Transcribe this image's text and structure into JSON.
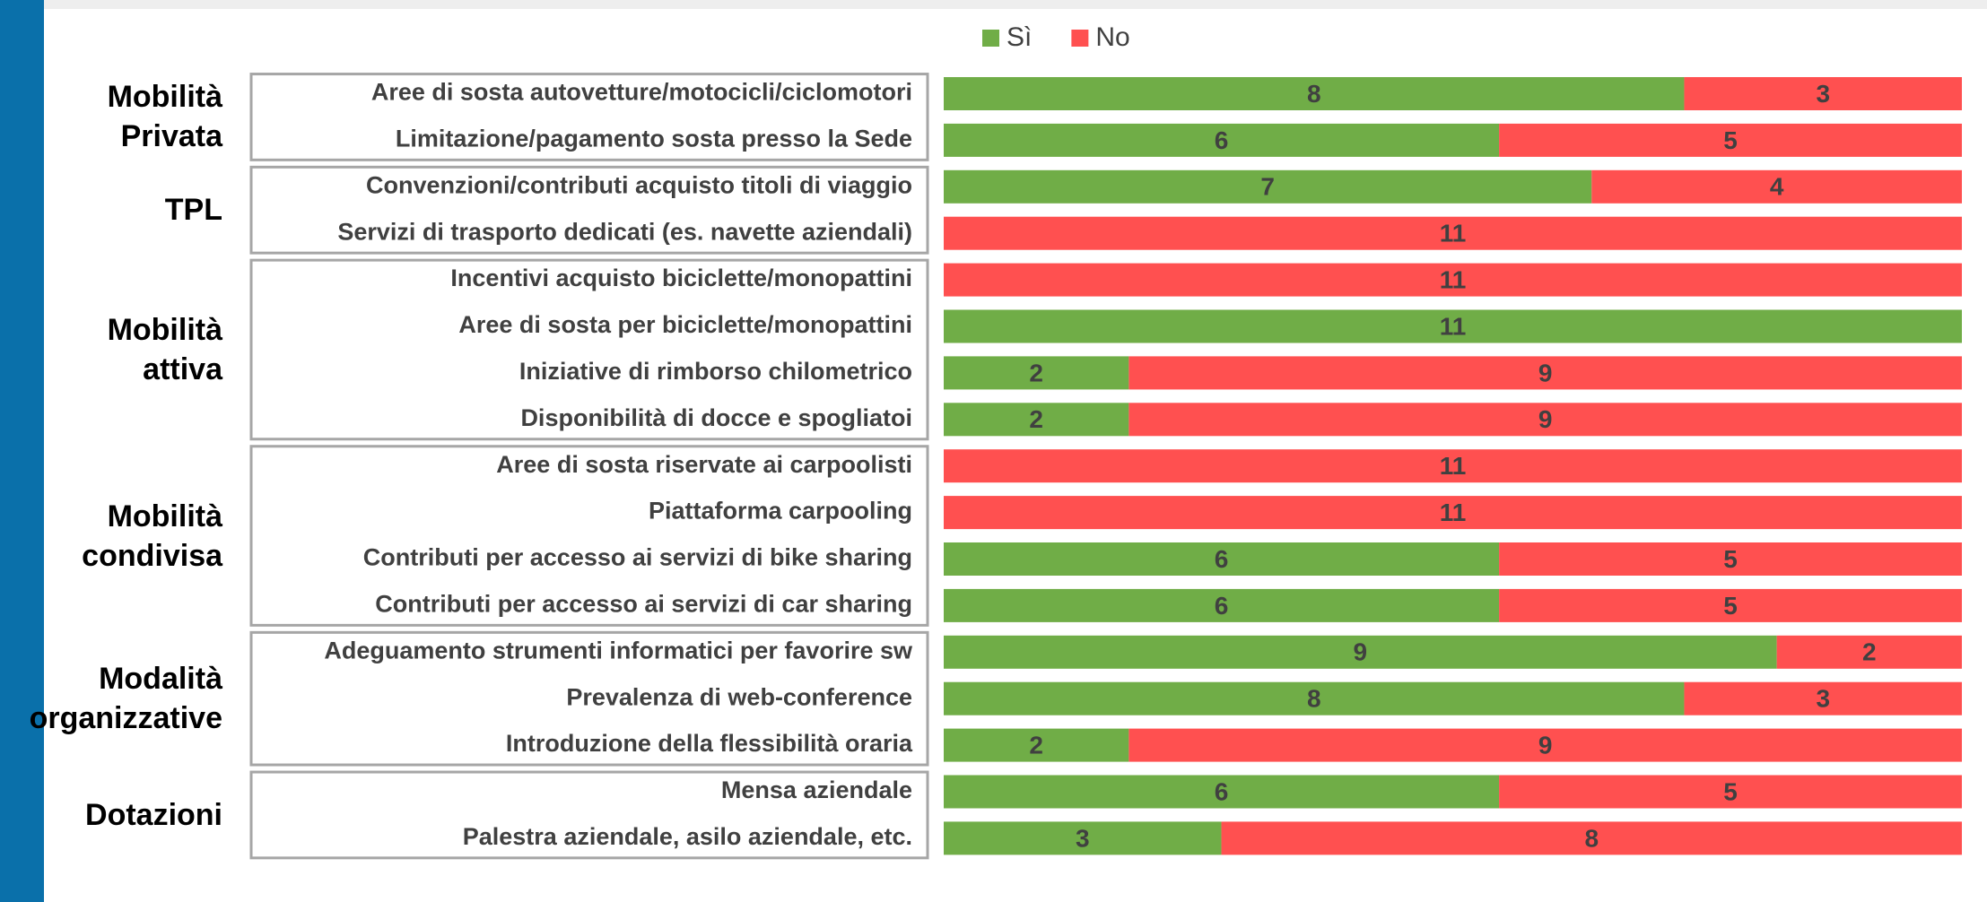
{
  "chart_data": {
    "type": "stacked-bar-horizontal",
    "groups": [
      {
        "name": "Mobilità Privata",
        "categories": [
          "Aree di sosta autovetture/motocicli/ciclomotori",
          "Limitazione/pagamento sosta presso la Sede"
        ]
      },
      {
        "name": "TPL",
        "categories": [
          "Convenzioni/contributi acquisto titoli di viaggio",
          "Servizi di trasporto dedicati (es. navette aziendali)"
        ]
      },
      {
        "name": "Mobilità attiva",
        "categories": [
          "Incentivi acquisto biciclette/monopattini",
          "Aree di sosta per biciclette/monopattini",
          "Iniziative di rimborso chilometrico",
          "Disponibilità di docce e spogliatoi"
        ]
      },
      {
        "name": "Mobilità condivisa",
        "categories": [
          "Aree di sosta riservate ai carpoolisti",
          "Piattaforma carpooling",
          "Contributi per accesso ai servizi di bike sharing",
          "Contributi per accesso ai servizi di car sharing"
        ]
      },
      {
        "name": "Modalità organizzative",
        "categories": [
          "Adeguamento strumenti informatici per favorire sw",
          "Prevalenza di web-conference",
          "Introduzione della flessibilità oraria"
        ]
      },
      {
        "name": "Dotazioni",
        "categories": [
          "Mensa aziendale",
          "Palestra aziendale, asilo aziendale, etc."
        ]
      }
    ],
    "series": [
      {
        "name": "Sì",
        "color": "#70ad47",
        "values": [
          8,
          6,
          7,
          0,
          0,
          11,
          2,
          2,
          0,
          0,
          6,
          6,
          9,
          8,
          2,
          6,
          3
        ]
      },
      {
        "name": "No",
        "color": "#ff5050",
        "values": [
          3,
          5,
          4,
          11,
          11,
          0,
          9,
          9,
          11,
          11,
          5,
          5,
          2,
          3,
          9,
          5,
          8
        ]
      }
    ],
    "xlim": [
      0,
      11
    ],
    "legend": "top"
  }
}
